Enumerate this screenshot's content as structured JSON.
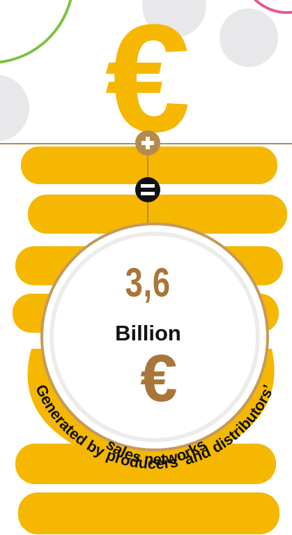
{
  "headline": {
    "amount": "3,6",
    "unit": "Billion",
    "currency_symbol": "€"
  },
  "caption": {
    "line1": "Generated by producers’ and distributors’",
    "line2": "sales networks"
  },
  "top_symbol": "€",
  "operators": {
    "plus": "+",
    "equals": "="
  },
  "colors": {
    "gold": "#f5b700",
    "bronze": "#a97539",
    "line": "#b48a4e",
    "ring_outer": "#c49a5c",
    "ring_inner": "#ececec",
    "bubble_gray": "#e8e8ea",
    "green": "#7dc243",
    "magenta": "#e05a9a",
    "black": "#111111"
  },
  "icons": [
    "euro-icon",
    "plus-icon",
    "equals-icon"
  ]
}
